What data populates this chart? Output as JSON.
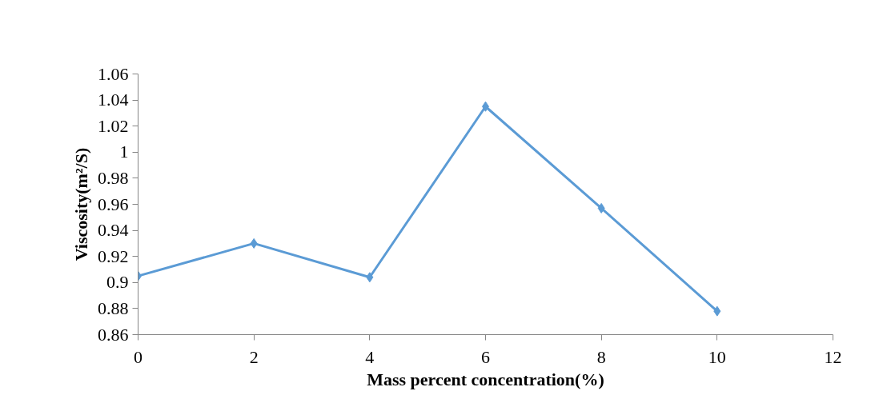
{
  "chart_data": {
    "type": "line",
    "xlabel": "Mass percent concentration(%)",
    "ylabel": "Viscosity(m²/S)",
    "x": [
      0,
      2,
      4,
      6,
      8,
      10
    ],
    "series": [
      {
        "color": "#5b9bd5",
        "values": [
          0.905,
          0.93,
          0.904,
          1.035,
          0.957,
          0.878
        ]
      }
    ],
    "xlim": [
      0,
      12
    ],
    "xticks": [
      0,
      2,
      4,
      6,
      8,
      10,
      12
    ],
    "ylim": [
      0.86,
      1.06
    ],
    "yticks": [
      0.86,
      0.88,
      {
        "value": 0.9,
        "label": "0.9"
      },
      0.92,
      0.94,
      0.96,
      0.98,
      {
        "value": 1.0,
        "label": "1"
      },
      1.02,
      1.04,
      1.06
    ],
    "marker": "diamond",
    "line_style": "solid"
  }
}
